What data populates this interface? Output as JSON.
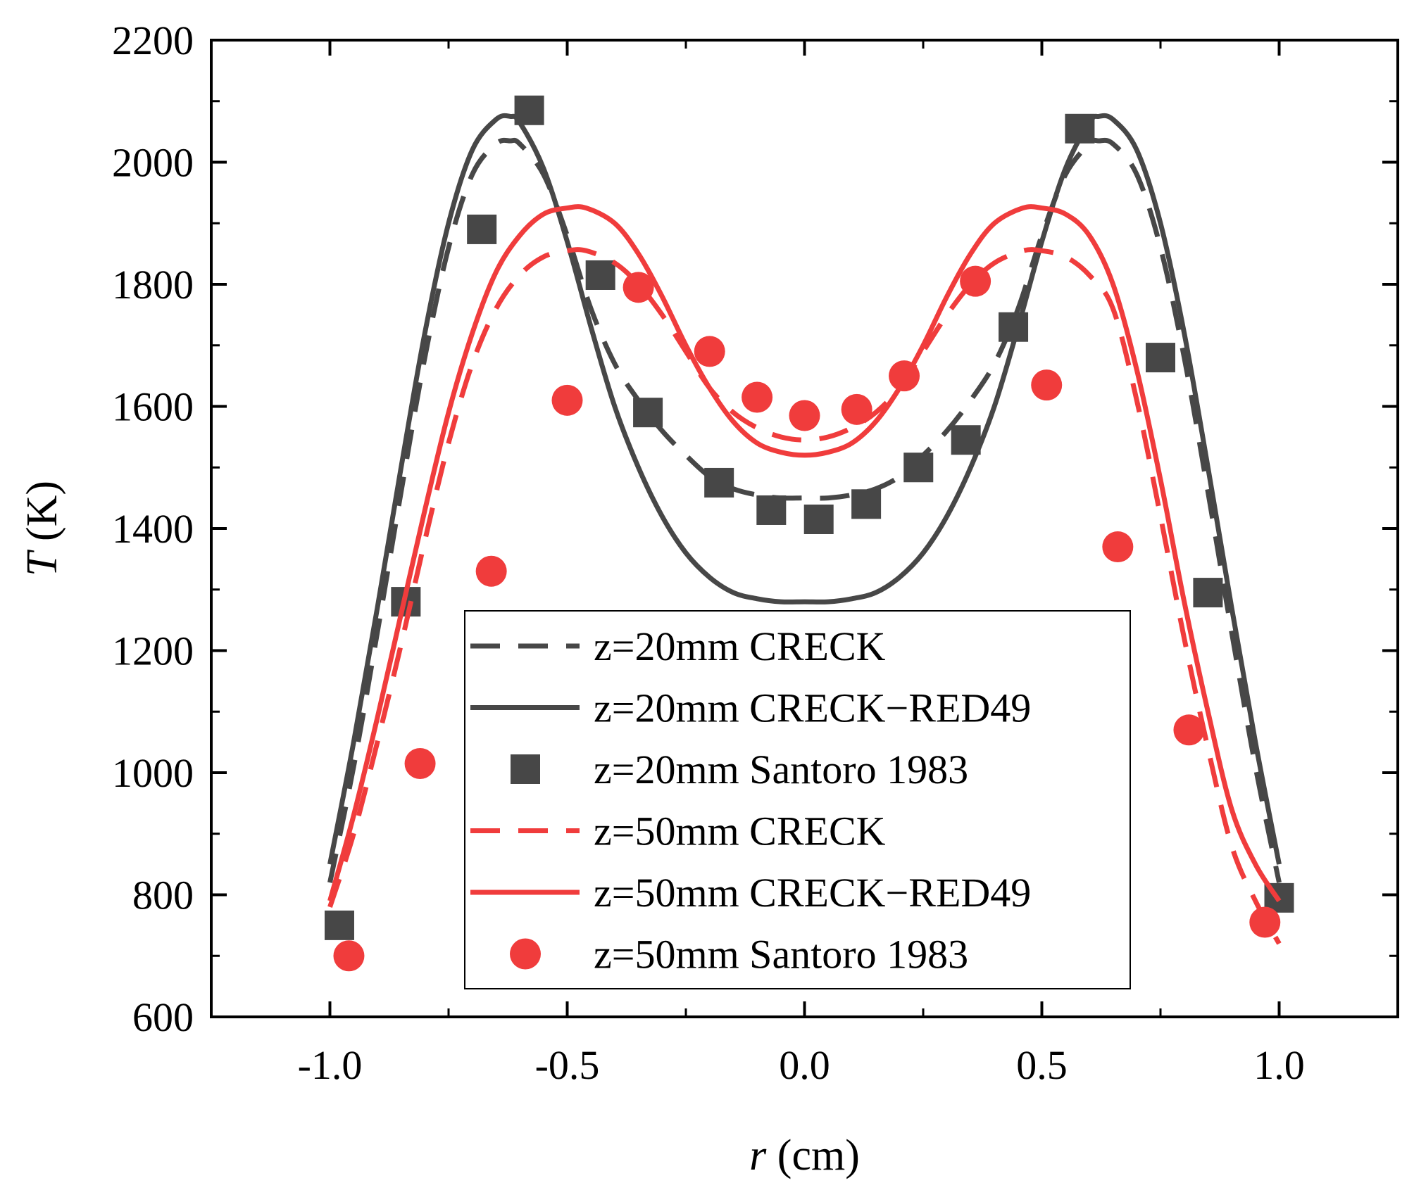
{
  "chart_data": {
    "type": "line",
    "title": "",
    "xlabel": {
      "symbol": "r",
      "unit": " (cm)"
    },
    "ylabel": {
      "symbol": "T",
      "unit": " (K)"
    },
    "xlim": [
      -1.25,
      1.25
    ],
    "ylim": [
      600,
      2200
    ],
    "xticks": [
      -1.0,
      -0.5,
      0.0,
      0.5,
      1.0
    ],
    "xtick_labels": [
      "-1.0",
      "-0.5",
      "0.0",
      "0.5",
      "1.0"
    ],
    "yticks": [
      600,
      800,
      1000,
      1200,
      1400,
      1600,
      1800,
      2000,
      2200
    ],
    "ytick_labels": [
      "600",
      "800",
      "1000",
      "1200",
      "1400",
      "1600",
      "1800",
      "2000",
      "2200"
    ],
    "legend_position": "bottom-center",
    "colors": {
      "gray": "#474747",
      "red": "#f03c3c"
    },
    "series": [
      {
        "name": "z=20mm CRECK",
        "style": "dashed",
        "color": "#474747",
        "kind": "line",
        "x": [
          -1.0,
          -0.95,
          -0.9,
          -0.85,
          -0.8,
          -0.75,
          -0.7,
          -0.65,
          -0.62,
          -0.6,
          -0.55,
          -0.5,
          -0.45,
          -0.4,
          -0.35,
          -0.3,
          -0.25,
          -0.2,
          -0.15,
          -0.1,
          -0.05,
          0.0,
          0.05,
          0.1,
          0.15,
          0.2,
          0.25,
          0.3,
          0.35,
          0.4,
          0.45,
          0.5,
          0.55,
          0.6,
          0.62,
          0.65,
          0.7,
          0.75,
          0.8,
          0.85,
          0.9,
          0.95,
          1.0
        ],
        "y": [
          820,
          1010,
          1230,
          1460,
          1680,
          1860,
          1980,
          2030,
          2035,
          2030,
          1980,
          1880,
          1760,
          1670,
          1610,
          1560,
          1520,
          1485,
          1465,
          1455,
          1450,
          1450,
          1450,
          1455,
          1465,
          1485,
          1520,
          1560,
          1610,
          1670,
          1760,
          1880,
          1980,
          2030,
          2035,
          2030,
          1980,
          1860,
          1680,
          1460,
          1230,
          1010,
          820
        ]
      },
      {
        "name": "z=20mm CRECK−RED49",
        "style": "solid",
        "color": "#474747",
        "kind": "line",
        "x": [
          -1.0,
          -0.95,
          -0.9,
          -0.85,
          -0.8,
          -0.75,
          -0.7,
          -0.65,
          -0.62,
          -0.6,
          -0.55,
          -0.5,
          -0.45,
          -0.4,
          -0.35,
          -0.3,
          -0.25,
          -0.2,
          -0.15,
          -0.1,
          -0.05,
          0.0,
          0.05,
          0.1,
          0.15,
          0.2,
          0.25,
          0.3,
          0.35,
          0.4,
          0.45,
          0.5,
          0.55,
          0.6,
          0.62,
          0.65,
          0.7,
          0.75,
          0.8,
          0.85,
          0.9,
          0.95,
          1.0
        ],
        "y": [
          850,
          1050,
          1270,
          1500,
          1720,
          1900,
          2020,
          2070,
          2075,
          2065,
          1990,
          1870,
          1730,
          1600,
          1500,
          1420,
          1360,
          1320,
          1295,
          1285,
          1280,
          1280,
          1280,
          1285,
          1295,
          1320,
          1360,
          1420,
          1500,
          1600,
          1730,
          1870,
          1990,
          2065,
          2075,
          2070,
          2020,
          1900,
          1720,
          1500,
          1270,
          1050,
          850
        ]
      },
      {
        "name": "z=20mm Santoro 1983",
        "style": "square",
        "color": "#474747",
        "kind": "scatter",
        "x": [
          -0.98,
          -0.84,
          -0.68,
          -0.58,
          -0.43,
          -0.33,
          -0.18,
          -0.07,
          0.03,
          0.13,
          0.24,
          0.34,
          0.44,
          0.58,
          0.75,
          0.85,
          1.0
        ],
        "y": [
          750,
          1280,
          1890,
          2085,
          1815,
          1590,
          1475,
          1430,
          1415,
          1440,
          1500,
          1545,
          1730,
          2055,
          1680,
          1295,
          795
        ]
      },
      {
        "name": "z=50mm CRECK",
        "style": "dashed",
        "color": "#f03c3c",
        "kind": "line",
        "x": [
          -1.0,
          -0.95,
          -0.9,
          -0.85,
          -0.8,
          -0.75,
          -0.7,
          -0.65,
          -0.6,
          -0.55,
          -0.5,
          -0.46,
          -0.4,
          -0.35,
          -0.3,
          -0.25,
          -0.2,
          -0.15,
          -0.1,
          -0.05,
          0.0,
          0.05,
          0.1,
          0.15,
          0.2,
          0.25,
          0.3,
          0.35,
          0.4,
          0.46,
          0.5,
          0.55,
          0.6,
          0.65,
          0.7,
          0.75,
          0.8,
          0.85,
          0.9,
          0.95,
          1.0
        ],
        "y": [
          780,
          900,
          1050,
          1210,
          1380,
          1540,
          1670,
          1760,
          1815,
          1845,
          1855,
          1855,
          1835,
          1800,
          1750,
          1690,
          1630,
          1590,
          1565,
          1550,
          1545,
          1550,
          1565,
          1590,
          1630,
          1690,
          1750,
          1800,
          1835,
          1855,
          1855,
          1845,
          1815,
          1760,
          1610,
          1420,
          1220,
          1040,
          880,
          790,
          720
        ]
      },
      {
        "name": "z=50mm CRECK−RED49",
        "style": "solid",
        "color": "#f03c3c",
        "kind": "line",
        "x": [
          -1.0,
          -0.95,
          -0.9,
          -0.85,
          -0.8,
          -0.75,
          -0.7,
          -0.65,
          -0.6,
          -0.55,
          -0.5,
          -0.46,
          -0.4,
          -0.35,
          -0.3,
          -0.25,
          -0.2,
          -0.15,
          -0.1,
          -0.05,
          0.0,
          0.05,
          0.1,
          0.15,
          0.2,
          0.25,
          0.3,
          0.35,
          0.4,
          0.46,
          0.5,
          0.55,
          0.6,
          0.65,
          0.7,
          0.75,
          0.8,
          0.85,
          0.9,
          0.95,
          1.0
        ],
        "y": [
          790,
          930,
          1090,
          1260,
          1430,
          1590,
          1720,
          1820,
          1880,
          1915,
          1925,
          1925,
          1900,
          1850,
          1780,
          1700,
          1630,
          1575,
          1540,
          1525,
          1520,
          1525,
          1540,
          1575,
          1630,
          1700,
          1780,
          1850,
          1900,
          1925,
          1925,
          1915,
          1880,
          1800,
          1660,
          1480,
          1280,
          1100,
          940,
          850,
          790
        ]
      },
      {
        "name": "z=50mm Santoro 1983",
        "style": "circle",
        "color": "#f03c3c",
        "kind": "scatter",
        "x": [
          -0.96,
          -0.81,
          -0.66,
          -0.5,
          -0.35,
          -0.2,
          -0.1,
          0.0,
          0.11,
          0.21,
          0.36,
          0.51,
          0.66,
          0.81,
          0.97
        ],
        "y": [
          700,
          1015,
          1330,
          1610,
          1795,
          1690,
          1615,
          1585,
          1595,
          1650,
          1805,
          1635,
          1370,
          1070,
          755
        ]
      }
    ]
  }
}
